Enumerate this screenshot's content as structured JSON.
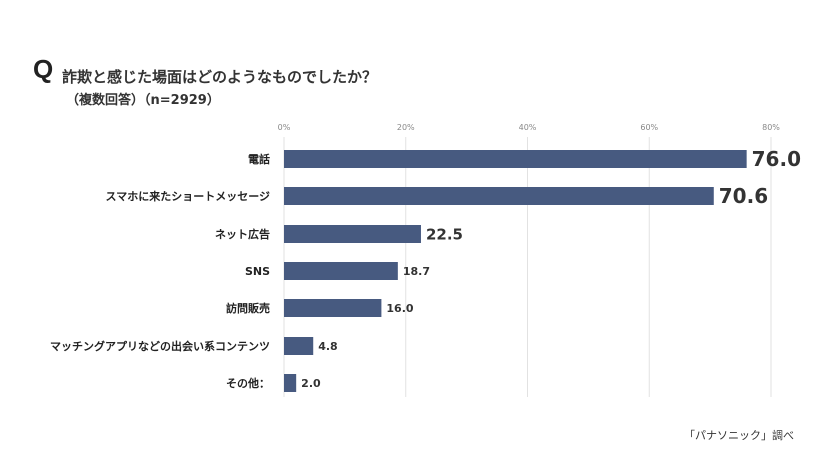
{
  "header": {
    "q_mark": "Q",
    "title": "詐欺と感じた場面はどのようなものでしたか？",
    "subtitle": "（複数回答）（n=2929）"
  },
  "footer": {
    "source": "「パナソニック」調べ"
  },
  "chart_data": {
    "type": "bar",
    "orientation": "horizontal",
    "categories": [
      "電話",
      "スマホに来たショートメッセージ",
      "ネット広告",
      "SNS",
      "訪問販売",
      "マッチングアプリなどの出会い系コンテンツ",
      "その他："
    ],
    "values": [
      76.0,
      70.6,
      22.5,
      18.7,
      16.0,
      4.8,
      2.0
    ],
    "value_labels": [
      "76.0",
      "70.6",
      "22.5",
      "18.7",
      "16.0",
      "4.8",
      "2.0"
    ],
    "xlim": [
      0,
      80
    ],
    "x_ticks": [
      0,
      20,
      40,
      60,
      80
    ],
    "x_tick_labels": [
      "0%",
      "20%",
      "40%",
      "60%",
      "80%"
    ],
    "x_axis_position": "top",
    "grid": true,
    "bar_color": "#475a80",
    "title": "詐欺と感じた場面はどのようなものでしたか？"
  }
}
